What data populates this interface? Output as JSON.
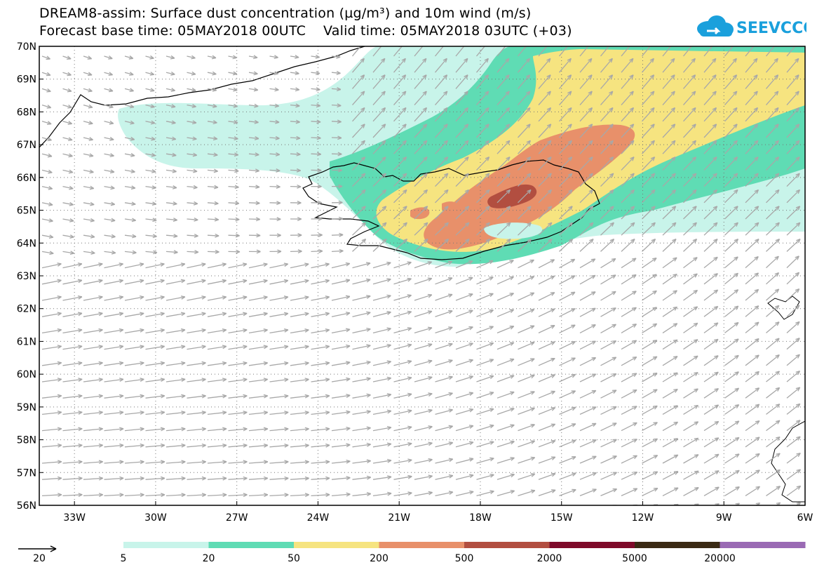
{
  "title": {
    "line1": "DREAM8-assim: Surface dust concentration (µg/m³) and 10m wind (m/s)",
    "line2": "Forecast base time: 05MAY2018 00UTC    Valid time: 05MAY2018 03UTC (+03)"
  },
  "logo": {
    "text": "SEEVCCC",
    "icon": "cloud-icon"
  },
  "axes": {
    "lat_labels": [
      "70N",
      "69N",
      "68N",
      "67N",
      "66N",
      "65N",
      "64N",
      "63N",
      "62N",
      "61N",
      "60N",
      "59N",
      "58N",
      "57N",
      "56N"
    ],
    "lon_labels": [
      "33W",
      "30W",
      "27W",
      "24W",
      "21W",
      "18W",
      "15W",
      "12W",
      "9W",
      "6W"
    ]
  },
  "legend": {
    "wind_ref_value": "20",
    "colors": [
      "#c8f4ea",
      "#5fdcb4",
      "#f6e480",
      "#e8906a",
      "#b24e40",
      "#7e0a2a",
      "#3a2a14",
      "#9a6ab4"
    ],
    "tick_labels": [
      "5",
      "20",
      "50",
      "200",
      "500",
      "2000",
      "5000",
      "20000"
    ]
  },
  "colors": {
    "c5": "#c8f4ea",
    "c20": "#5fdcb4",
    "c50": "#f6e480",
    "c200": "#e8906a",
    "c500": "#b24e40",
    "coast": "#000000",
    "wind": "#a8a8a8"
  }
}
